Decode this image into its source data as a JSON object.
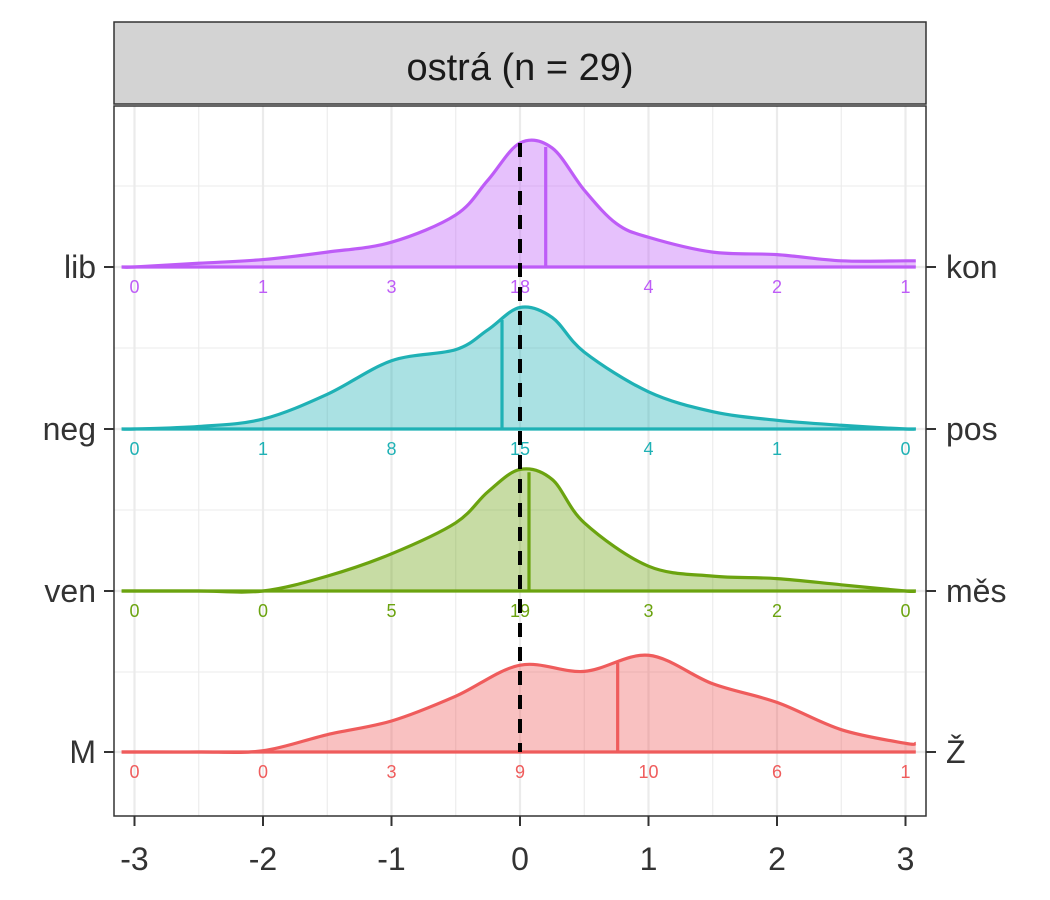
{
  "chart_data": {
    "type": "ridgeline",
    "title": "ostrá (n = 29)",
    "xlim": [
      -3,
      3
    ],
    "x_ticks": [
      -3,
      -2,
      -1,
      0,
      1,
      2,
      3
    ],
    "x_tick_labels": [
      "-3",
      "-2",
      "-1",
      "0",
      "1",
      "2",
      "3"
    ],
    "reference_line_x": 0,
    "grid": true,
    "rows": [
      {
        "left_label": "lib",
        "right_label": "kon",
        "color": "#BE5CF7",
        "mean": 0.2,
        "count_x": [
          -3,
          -2,
          -1,
          0,
          1,
          2,
          3
        ],
        "counts": [
          "0",
          "1",
          "3",
          "18",
          "4",
          "2",
          "1"
        ],
        "density": [
          [
            -3.0,
            0.0
          ],
          [
            -2.5,
            0.03
          ],
          [
            -2.0,
            0.06
          ],
          [
            -1.5,
            0.12
          ],
          [
            -1.0,
            0.2
          ],
          [
            -0.5,
            0.42
          ],
          [
            -0.25,
            0.7
          ],
          [
            0.0,
            1.0
          ],
          [
            0.25,
            0.96
          ],
          [
            0.5,
            0.62
          ],
          [
            0.75,
            0.35
          ],
          [
            1.0,
            0.24
          ],
          [
            1.5,
            0.12
          ],
          [
            2.0,
            0.1
          ],
          [
            2.5,
            0.05
          ],
          [
            3.0,
            0.05
          ]
        ]
      },
      {
        "left_label": "neg",
        "right_label": "pos",
        "color": "#1FB1B5",
        "mean": -0.14,
        "count_x": [
          -3,
          -2,
          -1,
          0,
          1,
          2,
          3
        ],
        "counts": [
          "0",
          "1",
          "8",
          "15",
          "4",
          "1",
          "0"
        ],
        "density": [
          [
            -3.0,
            0.0
          ],
          [
            -2.5,
            0.02
          ],
          [
            -2.0,
            0.08
          ],
          [
            -1.5,
            0.28
          ],
          [
            -1.0,
            0.55
          ],
          [
            -0.5,
            0.64
          ],
          [
            -0.25,
            0.8
          ],
          [
            0.0,
            0.98
          ],
          [
            0.25,
            0.9
          ],
          [
            0.5,
            0.62
          ],
          [
            1.0,
            0.3
          ],
          [
            1.5,
            0.14
          ],
          [
            2.0,
            0.07
          ],
          [
            2.5,
            0.03
          ],
          [
            3.0,
            0.0
          ]
        ]
      },
      {
        "left_label": "ven",
        "right_label": "měs",
        "color": "#6BA30F",
        "mean": 0.07,
        "count_x": [
          -3,
          -2,
          -1,
          0,
          1,
          2,
          3
        ],
        "counts": [
          "0",
          "0",
          "5",
          "19",
          "3",
          "2",
          "0"
        ],
        "density": [
          [
            -3.0,
            0.0
          ],
          [
            -2.5,
            0.0
          ],
          [
            -2.0,
            0.0
          ],
          [
            -1.5,
            0.12
          ],
          [
            -1.0,
            0.3
          ],
          [
            -0.5,
            0.55
          ],
          [
            -0.25,
            0.8
          ],
          [
            0.0,
            0.98
          ],
          [
            0.25,
            0.9
          ],
          [
            0.5,
            0.55
          ],
          [
            1.0,
            0.2
          ],
          [
            1.5,
            0.12
          ],
          [
            2.0,
            0.1
          ],
          [
            2.5,
            0.05
          ],
          [
            3.0,
            0.0
          ]
        ]
      },
      {
        "left_label": "M",
        "right_label": "Ž",
        "color": "#EF5C5C",
        "mean": 0.76,
        "count_x": [
          -3,
          -2,
          -1,
          0,
          1,
          2,
          3
        ],
        "counts": [
          "0",
          "0",
          "3",
          "9",
          "10",
          "6",
          "1"
        ],
        "density": [
          [
            -3.0,
            0.0
          ],
          [
            -2.5,
            0.0
          ],
          [
            -2.0,
            0.01
          ],
          [
            -1.5,
            0.14
          ],
          [
            -1.0,
            0.25
          ],
          [
            -0.5,
            0.45
          ],
          [
            0.0,
            0.7
          ],
          [
            0.5,
            0.65
          ],
          [
            1.0,
            0.78
          ],
          [
            1.5,
            0.55
          ],
          [
            2.0,
            0.4
          ],
          [
            2.5,
            0.18
          ],
          [
            3.0,
            0.07
          ]
        ]
      }
    ]
  }
}
